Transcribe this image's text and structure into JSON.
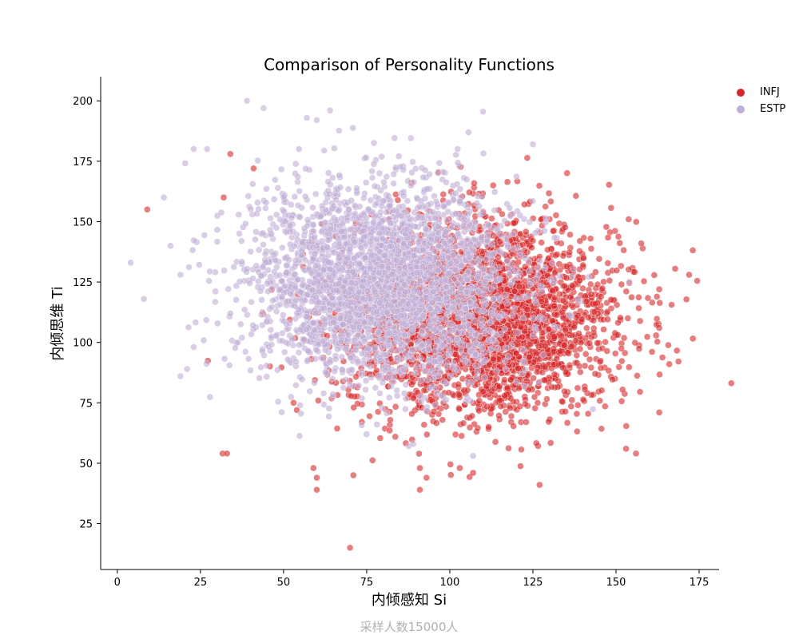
{
  "chart_data": {
    "type": "scatter",
    "title": "Comparison of Personality Functions",
    "xlabel": "内倾感知 Si",
    "ylabel": "内倾思维 Ti",
    "footer": "采样人数15000人",
    "xlim": [
      -5,
      181
    ],
    "ylim": [
      6,
      210
    ],
    "xticks": [
      0,
      25,
      50,
      75,
      100,
      125,
      150,
      175
    ],
    "yticks": [
      25,
      50,
      75,
      100,
      125,
      150,
      175,
      200
    ],
    "grid": false,
    "legend_position": "top-right",
    "series": [
      {
        "name": "INFJ",
        "color": "#d62728",
        "opacity": 0.6,
        "distribution": {
          "x_mean": 110,
          "x_sd": 20,
          "y_mean": 110,
          "y_sd": 20,
          "n": 3000
        },
        "outliers": [
          [
            9,
            155
          ],
          [
            33,
            54
          ],
          [
            70,
            15
          ],
          [
            60,
            39
          ],
          [
            59,
            48
          ],
          [
            60,
            44
          ],
          [
            71,
            45
          ],
          [
            91,
            39
          ],
          [
            91,
            48
          ],
          [
            93,
            44
          ],
          [
            103,
            48
          ],
          [
            107,
            46
          ],
          [
            127,
            41
          ],
          [
            172,
            128
          ],
          [
            166,
            91
          ],
          [
            163,
            122
          ],
          [
            163,
            106
          ],
          [
            163,
            71
          ],
          [
            156,
            54
          ],
          [
            153,
            56
          ],
          [
            34,
            178
          ],
          [
            41,
            172
          ],
          [
            53,
            75
          ],
          [
            54,
            72
          ],
          [
            32,
            160
          ]
        ]
      },
      {
        "name": "ESTP",
        "color": "#c0aed6",
        "opacity": 0.6,
        "distribution": {
          "x_mean": 80,
          "x_sd": 20,
          "y_mean": 125,
          "y_sd": 20,
          "n": 3000
        },
        "outliers": [
          [
            4,
            133
          ],
          [
            8,
            118
          ],
          [
            19,
            86
          ],
          [
            21,
            89
          ],
          [
            23,
            98
          ],
          [
            39,
            200
          ],
          [
            44,
            197
          ],
          [
            57,
            193
          ],
          [
            60,
            192
          ],
          [
            64,
            196
          ],
          [
            125,
            182
          ],
          [
            107,
            53
          ],
          [
            89,
            58
          ],
          [
            75,
            62
          ],
          [
            23,
            180
          ],
          [
            27,
            180
          ],
          [
            14,
            160
          ],
          [
            16,
            140
          ],
          [
            19,
            128
          ],
          [
            154,
            125
          ]
        ]
      }
    ]
  }
}
